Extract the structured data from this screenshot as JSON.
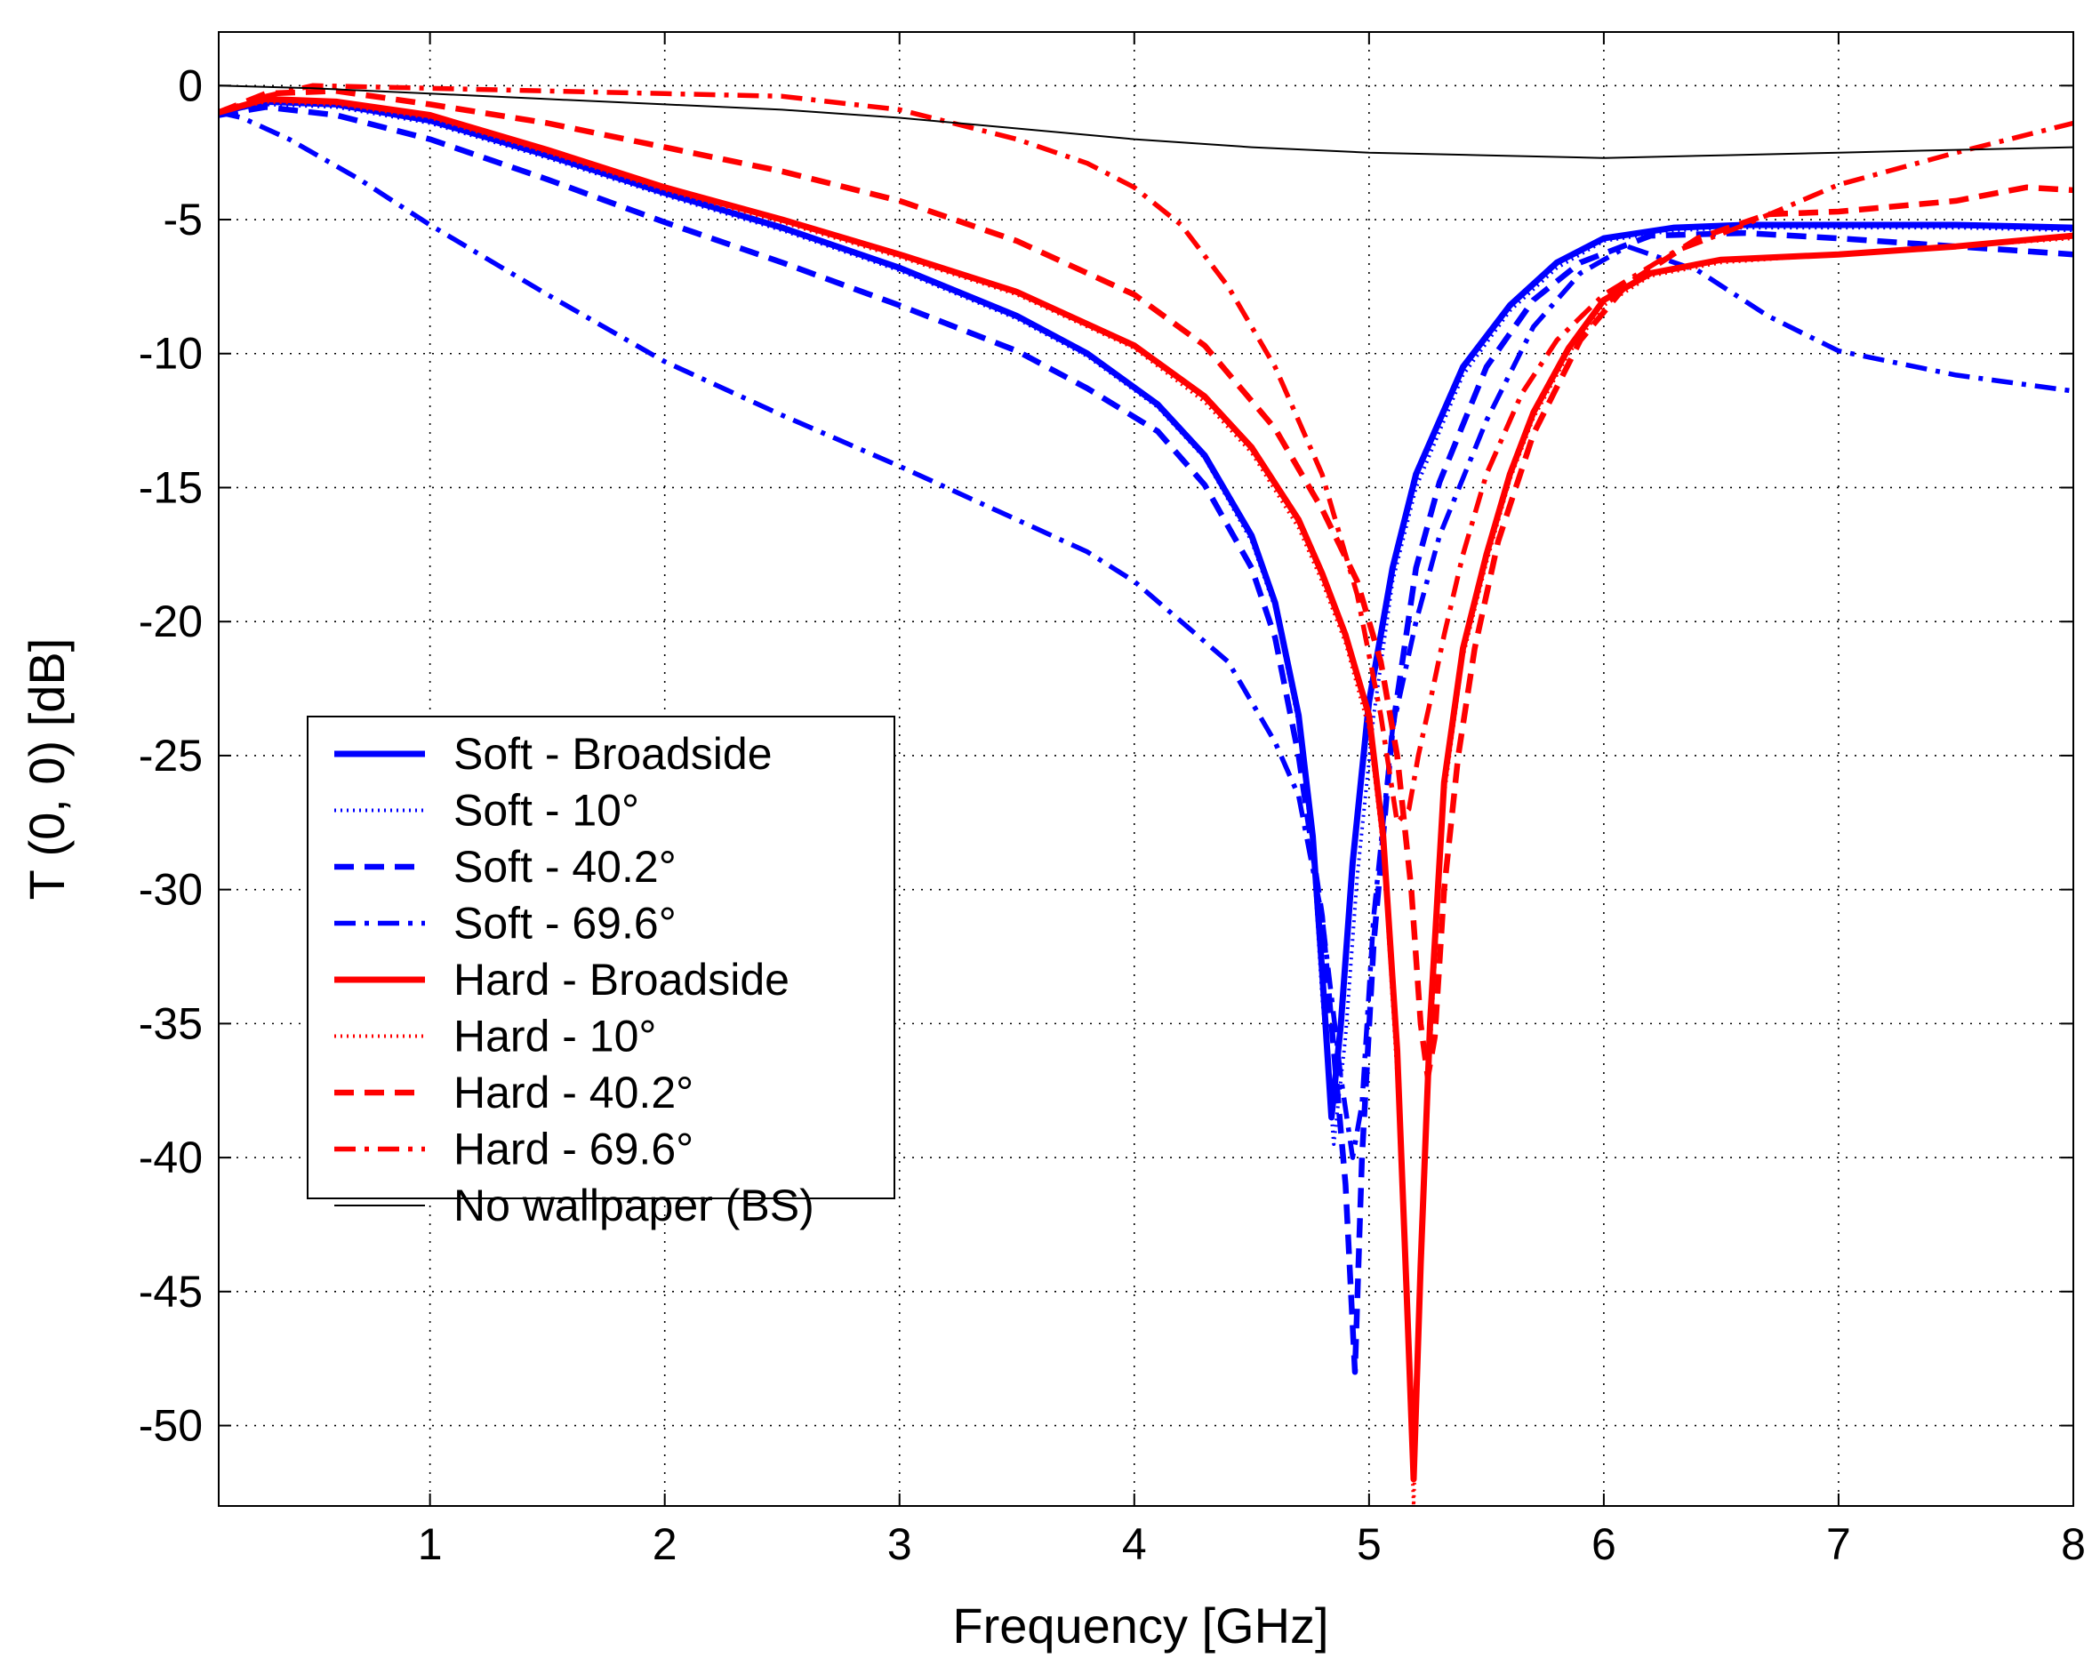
{
  "chart_data": {
    "type": "line",
    "title": "",
    "xlabel": "Frequency [GHz]",
    "ylabel": "T (0, 0) [dB]",
    "xlim": [
      0.1,
      8
    ],
    "ylim": [
      -53,
      2
    ],
    "xticks": [
      1,
      2,
      3,
      4,
      5,
      6,
      7,
      8
    ],
    "yticks": [
      0,
      -5,
      -10,
      -15,
      -20,
      -25,
      -30,
      -35,
      -40,
      -45,
      -50
    ],
    "grid": true,
    "legend_position": "left-center",
    "series": [
      {
        "name": "Soft - Broadside",
        "color": "#0000ff",
        "style": "solid",
        "x": [
          0.1,
          0.3,
          0.6,
          1.0,
          1.5,
          2.0,
          2.5,
          3.0,
          3.5,
          3.8,
          4.1,
          4.3,
          4.5,
          4.6,
          4.7,
          4.76,
          4.8,
          4.84,
          4.88,
          4.93,
          5.0,
          5.1,
          5.2,
          5.4,
          5.6,
          5.8,
          6.0,
          6.3,
          6.6,
          7.0,
          7.5,
          8.0
        ],
        "y": [
          -1.0,
          -0.6,
          -0.7,
          -1.3,
          -2.6,
          -4.0,
          -5.3,
          -6.8,
          -8.6,
          -10.0,
          -11.9,
          -13.8,
          -16.8,
          -19.3,
          -23.5,
          -28.0,
          -33.0,
          -38.5,
          -35.0,
          -29.0,
          -23.0,
          -18.0,
          -14.5,
          -10.5,
          -8.2,
          -6.6,
          -5.7,
          -5.3,
          -5.2,
          -5.2,
          -5.2,
          -5.3
        ]
      },
      {
        "name": "Soft - 10°",
        "color": "#0000ff",
        "style": "dotted",
        "x": [
          0.1,
          0.3,
          0.6,
          1.0,
          1.5,
          2.0,
          2.5,
          3.0,
          3.5,
          3.8,
          4.1,
          4.3,
          4.5,
          4.6,
          4.7,
          4.76,
          4.8,
          4.85,
          4.9,
          4.95,
          5.02,
          5.1,
          5.2,
          5.4,
          5.6,
          5.8,
          6.0,
          6.3,
          6.6,
          7.0,
          7.5,
          8.0
        ],
        "y": [
          -1.0,
          -0.7,
          -0.8,
          -1.4,
          -2.7,
          -4.1,
          -5.4,
          -6.9,
          -8.7,
          -10.1,
          -12.0,
          -13.9,
          -17.0,
          -19.5,
          -23.8,
          -28.5,
          -34.0,
          -39.5,
          -35.5,
          -29.5,
          -23.5,
          -18.5,
          -15.0,
          -10.8,
          -8.4,
          -6.8,
          -5.8,
          -5.4,
          -5.3,
          -5.3,
          -5.3,
          -5.4
        ]
      },
      {
        "name": "Soft - 40.2°",
        "color": "#0000ff",
        "style": "dashed",
        "x": [
          0.1,
          0.3,
          0.6,
          1.0,
          1.5,
          2.0,
          2.5,
          3.0,
          3.5,
          3.8,
          4.1,
          4.3,
          4.5,
          4.6,
          4.7,
          4.8,
          4.85,
          4.9,
          4.94,
          4.97,
          5.02,
          5.1,
          5.2,
          5.3,
          5.5,
          5.7,
          5.9,
          6.2,
          6.6,
          7.0,
          7.5,
          8.0
        ],
        "y": [
          -1.1,
          -0.8,
          -1.1,
          -2.0,
          -3.5,
          -5.1,
          -6.6,
          -8.2,
          -9.9,
          -11.3,
          -12.9,
          -14.9,
          -18.0,
          -20.6,
          -25.0,
          -31.0,
          -36.0,
          -41.0,
          -48.0,
          -40.0,
          -32.0,
          -24.0,
          -18.0,
          -14.8,
          -10.5,
          -8.0,
          -6.6,
          -5.6,
          -5.5,
          -5.7,
          -6.0,
          -6.3
        ]
      },
      {
        "name": "Soft - 69.6°",
        "color": "#0000ff",
        "style": "dashdot",
        "x": [
          0.1,
          0.2,
          0.4,
          0.7,
          1.0,
          1.5,
          2.0,
          2.5,
          3.0,
          3.5,
          3.8,
          4.0,
          4.2,
          4.4,
          4.6,
          4.7,
          4.8,
          4.88,
          4.93,
          4.97,
          5.02,
          5.1,
          5.2,
          5.3,
          5.5,
          5.7,
          5.9,
          6.1,
          6.4,
          6.7,
          7.0,
          7.5,
          8.0
        ],
        "y": [
          -1.0,
          -1.2,
          -2.0,
          -3.5,
          -5.2,
          -7.8,
          -10.3,
          -12.3,
          -14.2,
          -16.2,
          -17.4,
          -18.5,
          -20.0,
          -21.5,
          -24.5,
          -26.5,
          -31.0,
          -37.0,
          -40.0,
          -38.0,
          -31.0,
          -24.0,
          -20.0,
          -16.8,
          -12.5,
          -9.0,
          -7.0,
          -6.0,
          -6.9,
          -8.6,
          -9.9,
          -10.8,
          -11.4
        ]
      },
      {
        "name": "Hard - Broadside",
        "color": "#ff0000",
        "style": "solid",
        "x": [
          0.1,
          0.3,
          0.6,
          1.0,
          1.5,
          2.0,
          2.5,
          3.0,
          3.5,
          4.0,
          4.3,
          4.5,
          4.7,
          4.8,
          4.9,
          5.0,
          5.06,
          5.12,
          5.16,
          5.19,
          5.22,
          5.26,
          5.32,
          5.4,
          5.5,
          5.6,
          5.7,
          5.85,
          6.0,
          6.2,
          6.5,
          7.0,
          7.5,
          8.0
        ],
        "y": [
          -1.0,
          -0.5,
          -0.6,
          -1.1,
          -2.4,
          -3.8,
          -5.0,
          -6.3,
          -7.7,
          -9.7,
          -11.6,
          -13.5,
          -16.2,
          -18.2,
          -20.5,
          -23.5,
          -28.0,
          -36.0,
          -45.0,
          -52.0,
          -44.0,
          -35.0,
          -26.0,
          -21.0,
          -17.5,
          -14.5,
          -12.2,
          -9.8,
          -8.0,
          -7.0,
          -6.5,
          -6.3,
          -6.0,
          -5.6
        ]
      },
      {
        "name": "Hard - 10°",
        "color": "#ff0000",
        "style": "dotted",
        "x": [
          0.1,
          0.3,
          0.6,
          1.0,
          1.5,
          2.0,
          2.5,
          3.0,
          3.5,
          4.0,
          4.3,
          4.5,
          4.7,
          4.8,
          4.9,
          5.0,
          5.06,
          5.12,
          5.16,
          5.19,
          5.22,
          5.26,
          5.32,
          5.4,
          5.5,
          5.6,
          5.7,
          5.85,
          6.0,
          6.2,
          6.5,
          7.0,
          7.5,
          8.0
        ],
        "y": [
          -1.0,
          -0.6,
          -0.7,
          -1.2,
          -2.5,
          -3.9,
          -5.1,
          -6.4,
          -7.8,
          -9.8,
          -11.8,
          -13.7,
          -16.5,
          -18.5,
          -20.8,
          -24.0,
          -28.5,
          -37.0,
          -46.0,
          -53.0,
          -45.0,
          -36.0,
          -26.5,
          -21.3,
          -17.8,
          -14.7,
          -12.4,
          -10.0,
          -8.2,
          -7.1,
          -6.6,
          -6.3,
          -6.0,
          -5.7
        ]
      },
      {
        "name": "Hard - 40.2°",
        "color": "#ff0000",
        "style": "dashed",
        "x": [
          0.1,
          0.3,
          0.6,
          1.0,
          1.5,
          2.0,
          2.5,
          3.0,
          3.5,
          4.0,
          4.3,
          4.6,
          4.8,
          4.95,
          5.05,
          5.12,
          5.18,
          5.22,
          5.25,
          5.28,
          5.32,
          5.38,
          5.45,
          5.55,
          5.7,
          5.9,
          6.1,
          6.4,
          6.7,
          7.0,
          7.5,
          7.8,
          8.0
        ],
        "y": [
          -1.0,
          -0.3,
          -0.2,
          -0.7,
          -1.4,
          -2.3,
          -3.2,
          -4.3,
          -5.8,
          -7.8,
          -9.7,
          -12.8,
          -15.8,
          -18.5,
          -21.5,
          -25.0,
          -30.0,
          -35.0,
          -37.0,
          -35.5,
          -30.0,
          -25.0,
          -21.0,
          -17.0,
          -13.0,
          -9.5,
          -7.4,
          -5.7,
          -4.8,
          -4.7,
          -4.3,
          -3.8,
          -3.9
        ]
      },
      {
        "name": "Hard - 69.6°",
        "color": "#ff0000",
        "style": "dashdot",
        "x": [
          0.1,
          0.3,
          0.5,
          1.0,
          1.5,
          2.0,
          2.5,
          3.0,
          3.5,
          3.8,
          4.0,
          4.2,
          4.4,
          4.6,
          4.8,
          4.95,
          5.05,
          5.12,
          5.17,
          5.21,
          5.26,
          5.32,
          5.4,
          5.5,
          5.65,
          5.8,
          6.0,
          6.3,
          6.6,
          7.0,
          7.5,
          8.0
        ],
        "y": [
          -1.0,
          -0.4,
          0.0,
          -0.1,
          -0.2,
          -0.3,
          -0.4,
          -0.9,
          -2.0,
          -2.9,
          -3.8,
          -5.2,
          -7.5,
          -10.5,
          -14.5,
          -19.0,
          -23.5,
          -27.5,
          -27.0,
          -25.0,
          -23.0,
          -20.5,
          -17.5,
          -14.5,
          -11.5,
          -9.5,
          -7.8,
          -6.2,
          -5.2,
          -3.7,
          -2.5,
          -1.4
        ]
      },
      {
        "name": "No wallpaper (BS)",
        "color": "#000000",
        "style": "thin",
        "x": [
          0.1,
          0.5,
          1.0,
          1.5,
          2.0,
          2.5,
          3.0,
          3.5,
          4.0,
          4.5,
          5.0,
          5.5,
          6.0,
          6.5,
          7.0,
          7.5,
          8.0
        ],
        "y": [
          0.0,
          -0.1,
          -0.3,
          -0.5,
          -0.7,
          -0.9,
          -1.2,
          -1.6,
          -2.0,
          -2.3,
          -2.5,
          -2.6,
          -2.7,
          -2.6,
          -2.5,
          -2.4,
          -2.3
        ]
      }
    ]
  }
}
